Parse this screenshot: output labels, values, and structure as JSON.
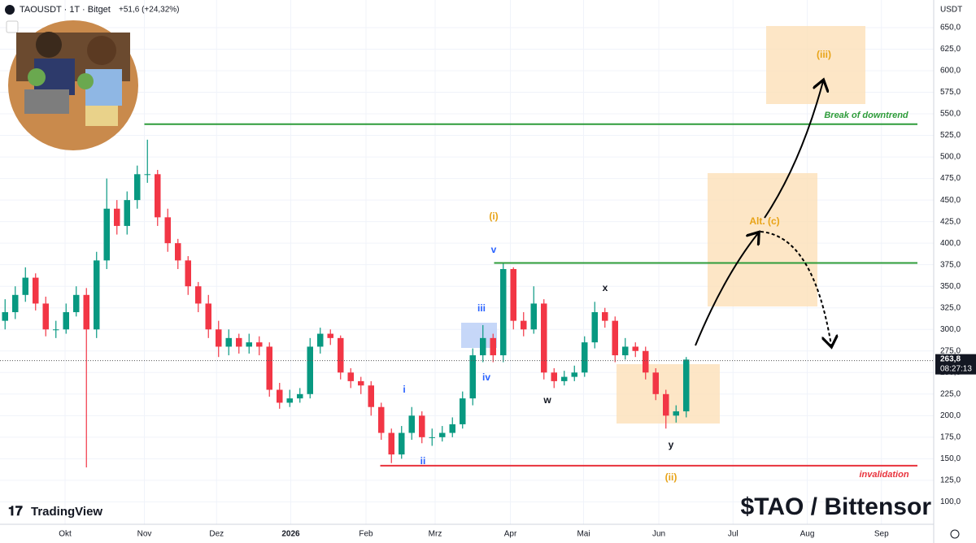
{
  "chart_data": {
    "type": "candlestick",
    "title": "TAOUSDT · 1T · Bitget",
    "change": "+51,6 (+24,32%)",
    "currency": "USDT",
    "brand": "TradingView",
    "caption": "$TAO / Bittensor",
    "up_color": "#089981",
    "down_color": "#f23645",
    "grid": true,
    "open": [
      310,
      320,
      340,
      360,
      330,
      300,
      300,
      320,
      340,
      300,
      380,
      440,
      420,
      450,
      480,
      480,
      430,
      400,
      380,
      350,
      330,
      300,
      280,
      290,
      280,
      285,
      280,
      230,
      215,
      220,
      225,
      280,
      295,
      290,
      250,
      240,
      235,
      210,
      180,
      155,
      180,
      200,
      175,
      175,
      180,
      190,
      220,
      270,
      290,
      270,
      370,
      310,
      300,
      330,
      250,
      240,
      245,
      250,
      285,
      320,
      310,
      270,
      280,
      275,
      250,
      225,
      200,
      205
    ],
    "high": [
      335,
      350,
      372,
      365,
      338,
      310,
      330,
      350,
      348,
      390,
      475,
      450,
      460,
      490,
      520,
      485,
      440,
      405,
      385,
      355,
      340,
      310,
      300,
      295,
      295,
      292,
      285,
      238,
      230,
      232,
      290,
      302,
      300,
      293,
      255,
      245,
      240,
      215,
      185,
      188,
      210,
      205,
      185,
      188,
      198,
      228,
      278,
      305,
      295,
      377,
      372,
      320,
      350,
      335,
      255,
      252,
      258,
      292,
      332,
      325,
      315,
      290,
      285,
      280,
      255,
      230,
      212,
      268
    ],
    "low": [
      300,
      312,
      332,
      322,
      292,
      290,
      295,
      315,
      140,
      290,
      370,
      410,
      410,
      440,
      470,
      420,
      390,
      370,
      340,
      320,
      290,
      268,
      270,
      272,
      272,
      270,
      222,
      208,
      210,
      215,
      220,
      272,
      282,
      242,
      232,
      225,
      200,
      172,
      145,
      150,
      172,
      168,
      165,
      170,
      175,
      185,
      212,
      262,
      262,
      262,
      300,
      292,
      295,
      242,
      232,
      235,
      240,
      245,
      278,
      302,
      262,
      265,
      268,
      242,
      218,
      185,
      192,
      198
    ],
    "close": [
      320,
      340,
      360,
      330,
      300,
      300,
      320,
      340,
      300,
      380,
      440,
      420,
      450,
      480,
      480,
      430,
      400,
      380,
      350,
      330,
      300,
      280,
      290,
      280,
      285,
      280,
      230,
      215,
      220,
      225,
      280,
      295,
      290,
      250,
      240,
      235,
      210,
      180,
      155,
      180,
      200,
      175,
      175,
      180,
      190,
      220,
      270,
      290,
      270,
      370,
      310,
      300,
      330,
      250,
      240,
      245,
      250,
      285,
      320,
      310,
      270,
      280,
      275,
      250,
      225,
      200,
      205,
      265
    ],
    "xlim": [
      -0.5,
      91.34
    ],
    "xticks": [
      {
        "value": 5.9,
        "label": "Okt"
      },
      {
        "value": 13.7,
        "label": "Nov"
      },
      {
        "value": 20.8,
        "label": "Dez"
      },
      {
        "value": 28.1,
        "label": "2026"
      },
      {
        "value": 35.5,
        "label": "Feb"
      },
      {
        "value": 42.3,
        "label": "Mrz"
      },
      {
        "value": 49.7,
        "label": "Apr"
      },
      {
        "value": 56.9,
        "label": "Mai"
      },
      {
        "value": 64.3,
        "label": "Jun"
      },
      {
        "value": 71.6,
        "label": "Jul"
      },
      {
        "value": 78.9,
        "label": "Aug"
      },
      {
        "value": 86.2,
        "label": "Sep"
      }
    ],
    "ylim": [
      74,
      682
    ],
    "yticks": [
      {
        "value": 100,
        "label": "100,0"
      },
      {
        "value": 125,
        "label": "125,0"
      },
      {
        "value": 150,
        "label": "150,0"
      },
      {
        "value": 175,
        "label": "175,0"
      },
      {
        "value": 200,
        "label": "200,0"
      },
      {
        "value": 225,
        "label": "225,0"
      },
      {
        "value": 250,
        "label": "250,0"
      },
      {
        "value": 275,
        "label": "275,0"
      },
      {
        "value": 300,
        "label": "300,0"
      },
      {
        "value": 325,
        "label": "325,0"
      },
      {
        "value": 350,
        "label": "350,0"
      },
      {
        "value": 375,
        "label": "375,0"
      },
      {
        "value": 400,
        "label": "400,0"
      },
      {
        "value": 425,
        "label": "425,0"
      },
      {
        "value": 450,
        "label": "450,0"
      },
      {
        "value": 475,
        "label": "475,0"
      },
      {
        "value": 500,
        "label": "500,0"
      },
      {
        "value": 525,
        "label": "525,0"
      },
      {
        "value": 550,
        "label": "550,0"
      },
      {
        "value": 575,
        "label": "575,0"
      },
      {
        "value": 600,
        "label": "600,0"
      },
      {
        "value": 625,
        "label": "625,0"
      },
      {
        "value": 650,
        "label": "650,0"
      }
    ],
    "last_price": {
      "value": 263.8,
      "label": "263,8"
    },
    "countdown": "08:27:13",
    "hlines": [
      {
        "value": 538,
        "color": "#2e9c3a",
        "start": 13.7
      },
      {
        "value": 377,
        "color": "#2e9c3a",
        "start": 48.1
      },
      {
        "value": 142,
        "color": "#e8323c",
        "start": 36.9
      }
    ],
    "annotations": [
      "(iii)",
      "Break of downtrend",
      "(i)",
      "v",
      "iii",
      "iv",
      "i",
      "ii",
      "w",
      "x",
      "y",
      "(ii)",
      "Alt. (c)",
      "invalidation"
    ]
  }
}
